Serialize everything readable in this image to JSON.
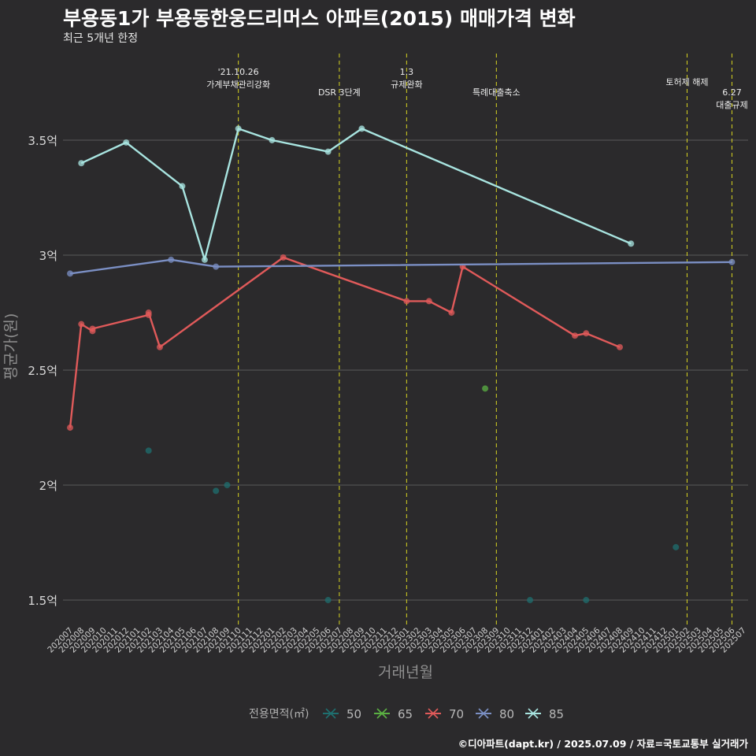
{
  "title": "부용동1가 부용동한웅드리머스 아파트(2015) 매매가격 변화",
  "subtitle": "최근 5개년 한정",
  "caption": "©디아파트(dapt.kr) / 2025.07.09 / 자료=국토교통부 실거래가",
  "chart_data": {
    "type": "line",
    "xlabel": "거래년월",
    "ylabel": "평균가(원)",
    "ylim": [
      1.35,
      3.85
    ],
    "yticks": [
      1.5,
      2,
      2.5,
      3,
      3.5
    ],
    "ytick_labels": [
      "1.5억",
      "2억",
      "2.5억",
      "3억",
      "3.5억"
    ],
    "categories": [
      "202007",
      "202008",
      "202009",
      "202010",
      "202011",
      "202012",
      "202101",
      "202102",
      "202103",
      "202104",
      "202105",
      "202106",
      "202107",
      "202108",
      "202109",
      "202110",
      "202111",
      "202112",
      "202201",
      "202202",
      "202203",
      "202204",
      "202205",
      "202206",
      "202207",
      "202208",
      "202209",
      "202210",
      "202211",
      "202212",
      "202301",
      "202302",
      "202303",
      "202304",
      "202305",
      "202306",
      "202307",
      "202308",
      "202309",
      "202310",
      "202311",
      "202312",
      "202401",
      "202402",
      "202403",
      "202404",
      "202405",
      "202406",
      "202407",
      "202408",
      "202409",
      "202410",
      "202411",
      "202412",
      "202501",
      "202502",
      "202503",
      "202504",
      "202505",
      "202506",
      "202507"
    ],
    "legend_title": "전용면적(㎡)",
    "legend_position": "bottom",
    "grid": true,
    "series": [
      {
        "name": "50",
        "color": "#1f6f6f",
        "points": [
          [
            "202102",
            2.15
          ],
          [
            "202108",
            1.975
          ],
          [
            "202109",
            2.0
          ],
          [
            "202206",
            1.5
          ],
          [
            "202312",
            1.5
          ],
          [
            "202405",
            1.5
          ],
          [
            "202501",
            1.73
          ]
        ]
      },
      {
        "name": "65",
        "color": "#5bb043",
        "points": [
          [
            "202308",
            2.42
          ]
        ]
      },
      {
        "name": "70",
        "color": "#e05a5a",
        "points": [
          [
            "202007",
            2.25
          ],
          [
            "202008",
            2.7
          ],
          [
            "202009",
            2.67
          ],
          [
            "202009",
            2.68
          ],
          [
            "202102",
            2.74
          ],
          [
            "202102",
            2.75
          ],
          [
            "202103",
            2.6
          ],
          [
            "202202",
            2.99
          ],
          [
            "202301",
            2.8
          ],
          [
            "202303",
            2.8
          ],
          [
            "202305",
            2.75
          ],
          [
            "202306",
            2.95
          ],
          [
            "202404",
            2.65
          ],
          [
            "202405",
            2.66
          ],
          [
            "202408",
            2.6
          ]
        ]
      },
      {
        "name": "80",
        "color": "#7b8fc4",
        "points": [
          [
            "202007",
            2.92
          ],
          [
            "202104",
            2.98
          ],
          [
            "202108",
            2.95
          ],
          [
            "202506",
            2.97
          ]
        ]
      },
      {
        "name": "85",
        "color": "#a8e4e0",
        "points": [
          [
            "202008",
            3.4
          ],
          [
            "202012",
            3.49
          ],
          [
            "202105",
            3.3
          ],
          [
            "202107",
            2.98
          ],
          [
            "202110",
            3.55
          ],
          [
            "202201",
            3.5
          ],
          [
            "202206",
            3.45
          ],
          [
            "202209",
            3.55
          ],
          [
            "202409",
            3.05
          ]
        ]
      }
    ],
    "annotations": [
      {
        "x": "202110",
        "lines": [
          "'21.10.26",
          "가계부채관리강화"
        ],
        "level": 0
      },
      {
        "x": "202207",
        "lines": [
          "DSR 3단계"
        ],
        "level": 1
      },
      {
        "x": "202301",
        "lines": [
          "1.3",
          "규제완화"
        ],
        "level": 0
      },
      {
        "x": "202309",
        "lines": [
          "특례대출축소"
        ],
        "level": 1
      },
      {
        "x": "202502",
        "lines": [
          "토허제 해제"
        ],
        "level": 0.5
      },
      {
        "x": "202506",
        "lines": [
          "6.27",
          "대출규제"
        ],
        "level": 1
      }
    ]
  }
}
